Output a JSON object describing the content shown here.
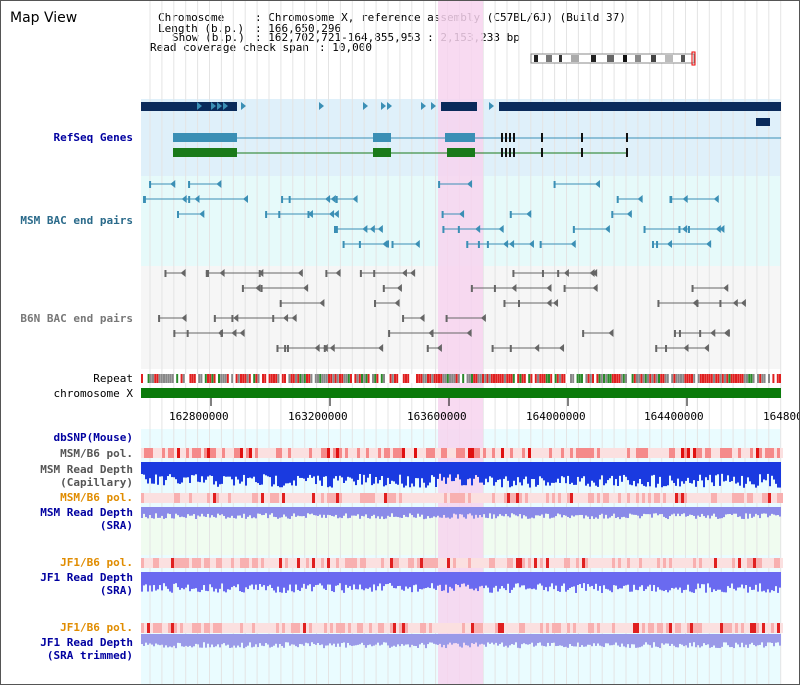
{
  "title": "Map View",
  "info": {
    "chromosome_key": "Chromosome",
    "chromosome_val": ": Chromosome X, reference assembly (C57BL/6J) (Build 37)",
    "length_key": "Length (b.p.)",
    "length_val": ": 166,650,296",
    "show_key": "Show (b.p.)",
    "show_val": ": 162,702,721-164,855,953 : 2,153,233 bp",
    "span_key": "Read coverage check span",
    "span_val": ": 10,000"
  },
  "tracks": {
    "refseq": "RefSeq Genes",
    "msm_bac": "MSM BAC end pairs",
    "b6n_bac": "B6N BAC end pairs",
    "repeat": "Repeat",
    "chromosome": "chromosome X",
    "dbsnp": "dbSNP(Mouse)",
    "msm_b6_pol_1": "MSM/B6 pol.",
    "msm_depth_cap_1": "MSM Read Depth",
    "msm_depth_cap_2": "(Capillary)",
    "msm_b6_pol_2": "MSM/B6 pol.",
    "msm_depth_sra_1": "MSM Read Depth",
    "msm_depth_sra_2": "(SRA)",
    "jf1_b6_pol_1": "JF1/B6 pol.",
    "jf1_depth_sra_1": "JF1 Read Depth",
    "jf1_depth_sra_2": "(SRA)",
    "jf1_b6_pol_2": "JF1/B6 pol.",
    "jf1_depth_trim_1": "JF1 Read Depth",
    "jf1_depth_trim_2": "(SRA trimmed)"
  },
  "axis_ticks": [
    "162800000",
    "163200000",
    "163600000",
    "164000000",
    "164400000",
    "164800"
  ],
  "colors": {
    "refseq_bg": "#dff0fa",
    "msm_bac_bg": "#e6fafa",
    "b6n_bac_bg": "#f6f6f6",
    "highlight": "#f7d4ef",
    "dark_navy": "#0a2a5a",
    "gene_blue": "#3b8fb5",
    "gene_green": "#1a7a1a",
    "label_navy": "#0000a0",
    "label_teal": "#2a6a8a",
    "label_orange": "#e08c00"
  }
}
